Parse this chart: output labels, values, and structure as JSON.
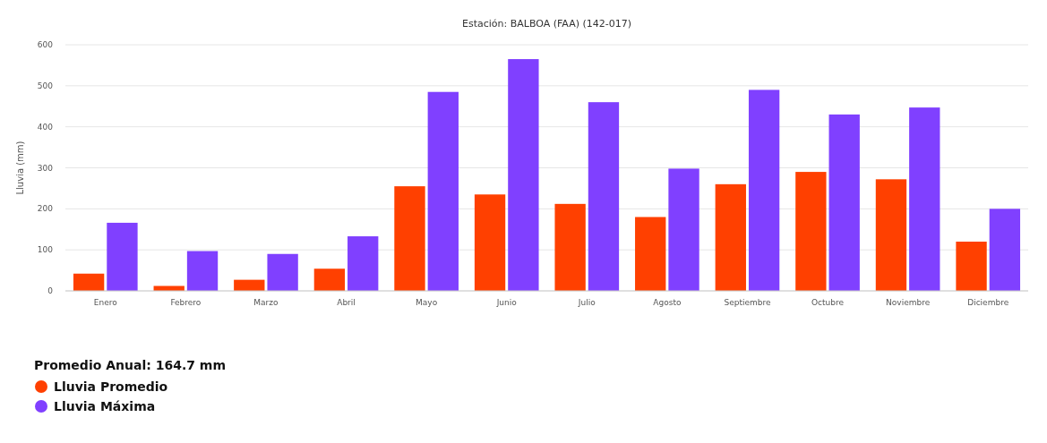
{
  "chart_data": {
    "type": "bar",
    "title": "Estación: BALBOA (FAA) (142-017)",
    "ylabel": "Lluvia (mm)",
    "categories": [
      "Enero",
      "Febrero",
      "Marzo",
      "Abril",
      "Mayo",
      "Junio",
      "Julio",
      "Agosto",
      "Septiembre",
      "Octubre",
      "Noviembre",
      "Diciembre"
    ],
    "series": [
      {
        "name": "Lluvia Promedio",
        "color": "#ff4000",
        "values": [
          42,
          12,
          27,
          54,
          255,
          235,
          212,
          180,
          260,
          290,
          272,
          120
        ]
      },
      {
        "name": "Lluvia Máxima",
        "color": "#8040ff",
        "values": [
          166,
          97,
          90,
          133,
          485,
          565,
          460,
          298,
          490,
          430,
          447,
          200
        ]
      }
    ],
    "ylim": [
      0,
      600
    ],
    "yticks": [
      0,
      100,
      200,
      300,
      400,
      500,
      600
    ],
    "grid": "y",
    "legend": "bottom left",
    "annotations": [
      "Promedio Anual: 164.7 mm"
    ]
  }
}
